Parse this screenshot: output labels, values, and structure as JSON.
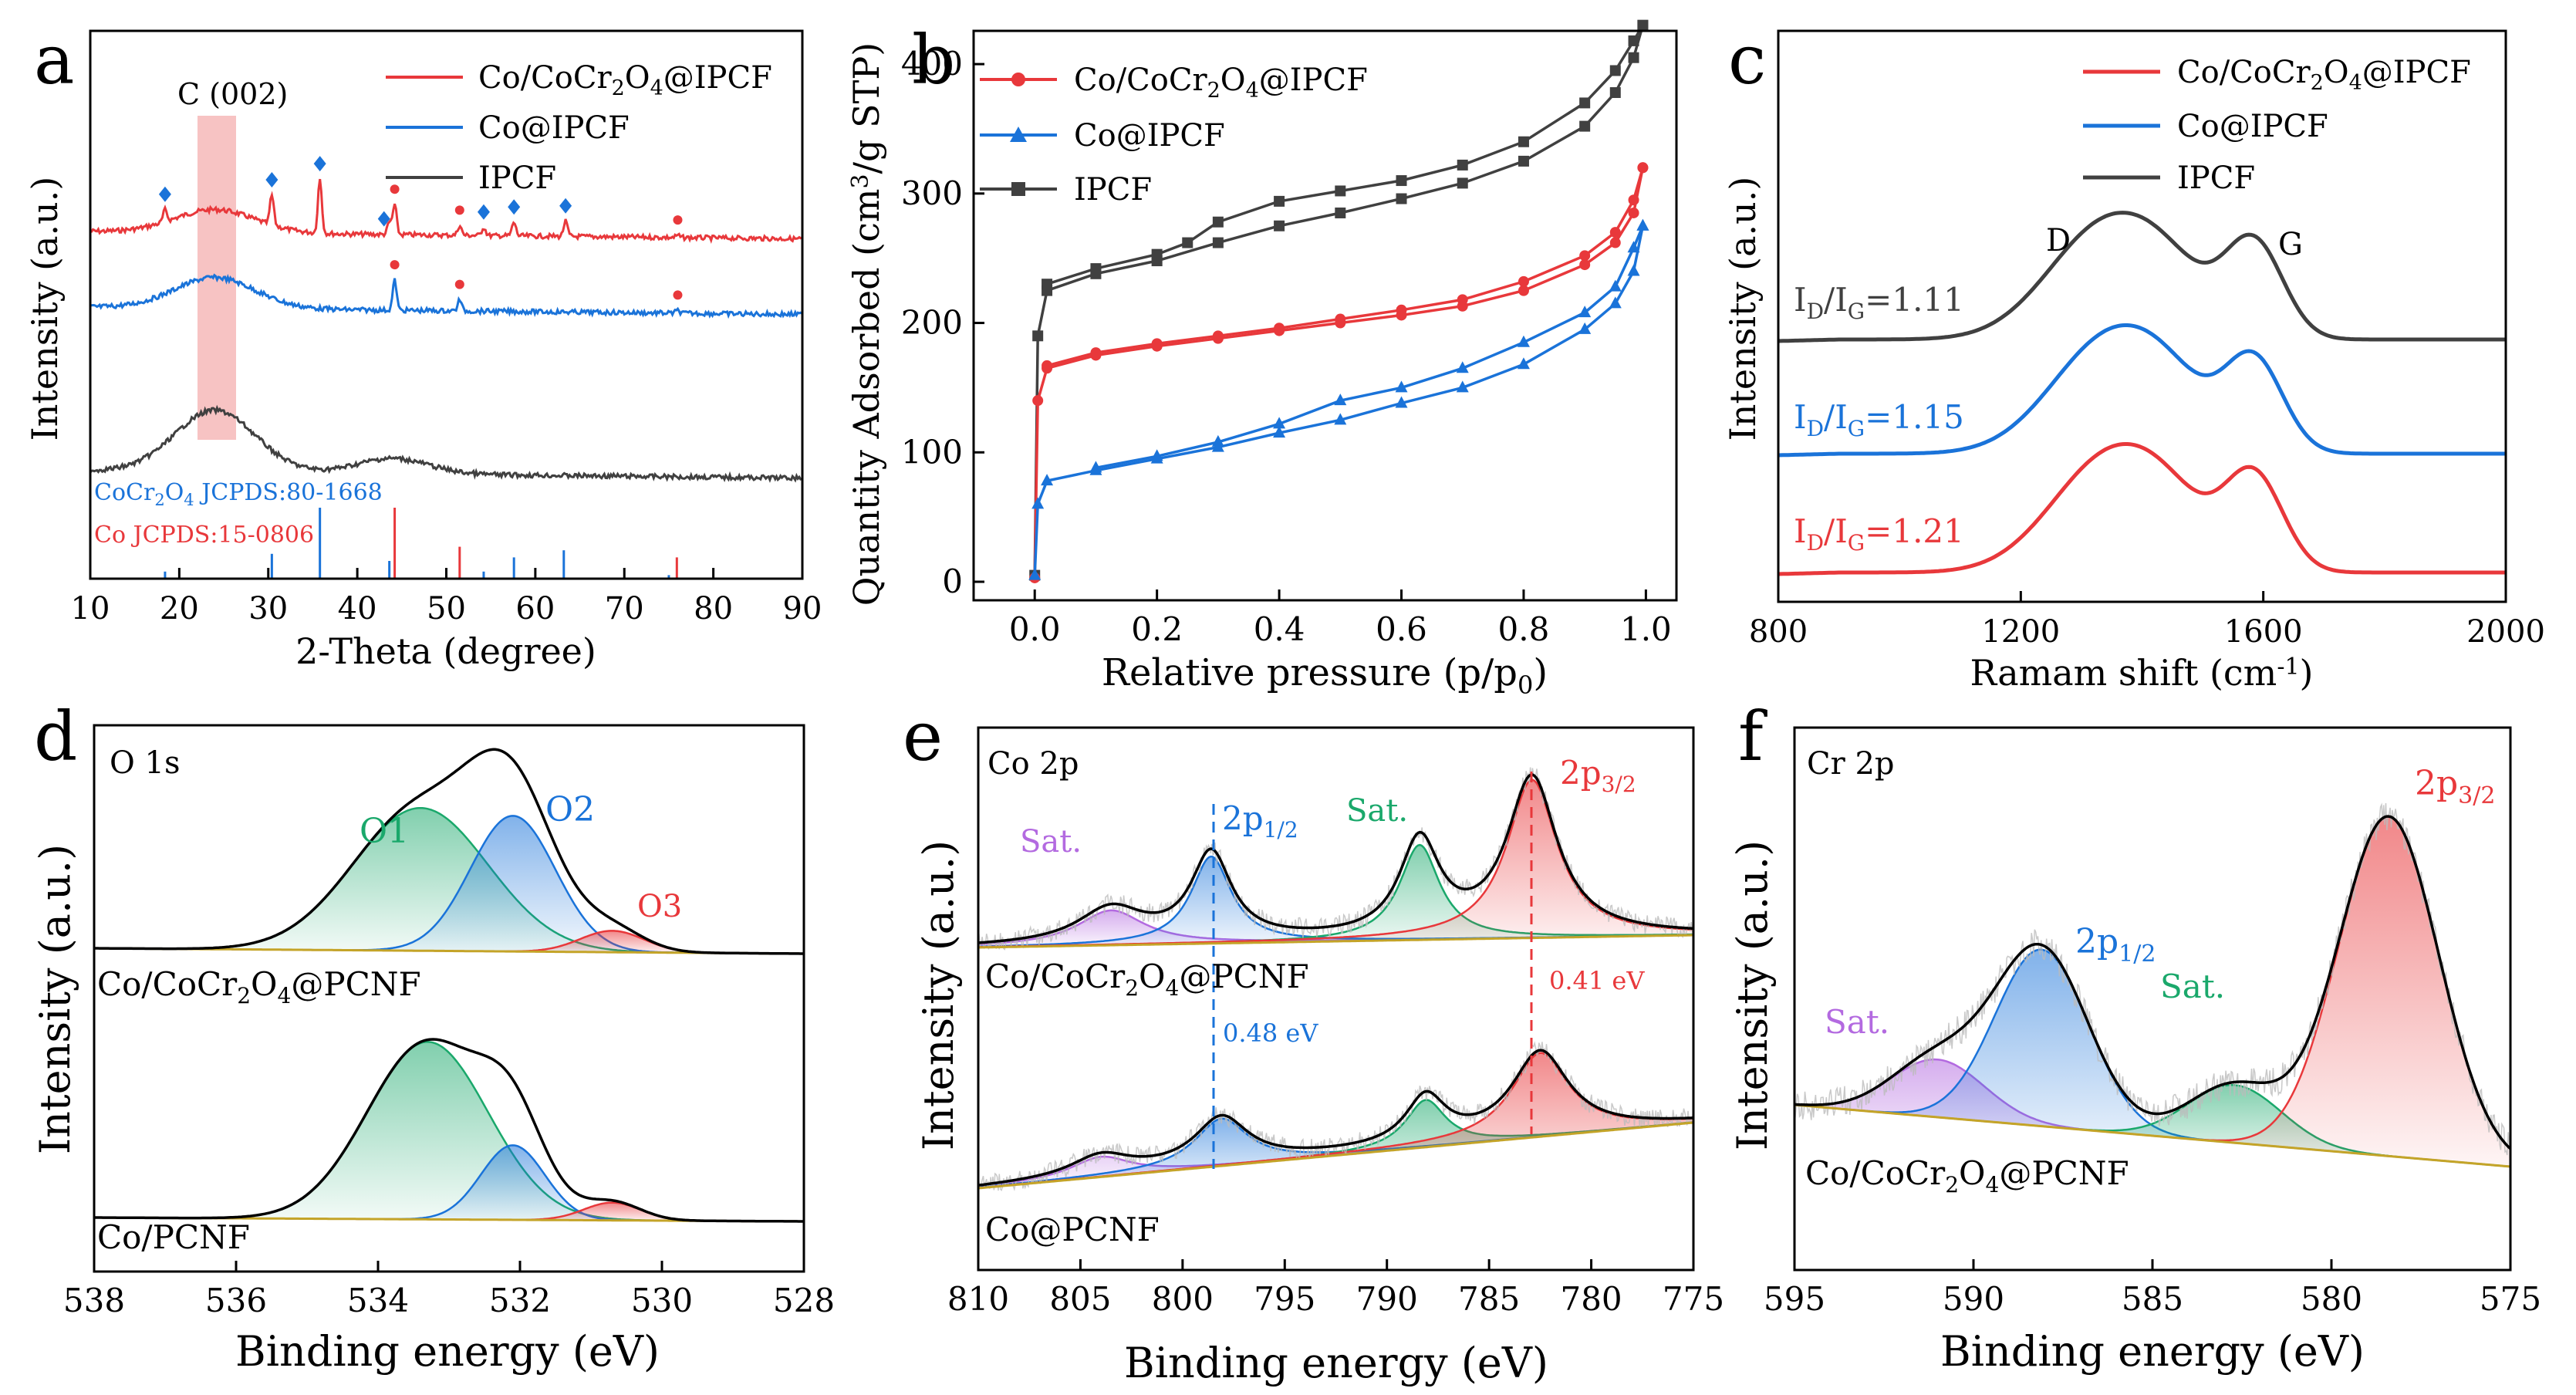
{
  "colors": {
    "red": "#e8383b",
    "blue": "#1a73d9",
    "dark": "#404040",
    "green": "#1aa86b",
    "purple": "#b36ae0",
    "tan": "#c4a428",
    "band": "#f6b8b8"
  },
  "chart_data": [
    {
      "panel": "a",
      "type": "line",
      "xlabel": "2-Theta (degree)",
      "ylabel": "Intensity (a.u.)",
      "xlim": [
        10,
        90
      ],
      "xticks": [
        10,
        20,
        30,
        40,
        50,
        60,
        70,
        80,
        90
      ],
      "band_label": "C (002)",
      "band": [
        22,
        26
      ],
      "legend": [
        "Co/CoCr2O4@IPCF",
        "Co@IPCF",
        "IPCF"
      ],
      "series": [
        {
          "name": "Co/CoCr2O4@IPCF",
          "color": "red",
          "hump": 24,
          "peaks": [
            [
              18.4,
              0.22
            ],
            [
              30.4,
              0.55
            ],
            [
              35.8,
              1.0
            ],
            [
              43.6,
              0.22
            ],
            [
              44.2,
              0.55
            ],
            [
              51.5,
              0.18
            ],
            [
              54.2,
              0.15
            ],
            [
              57.6,
              0.25
            ],
            [
              63.4,
              0.28
            ],
            [
              76,
              0.04
            ]
          ]
        },
        {
          "name": "Co@IPCF",
          "color": "blue",
          "hump": 24,
          "peaks": [
            [
              44.2,
              0.65
            ],
            [
              51.5,
              0.24
            ],
            [
              76,
              0.06
            ]
          ]
        },
        {
          "name": "IPCF",
          "color": "dark",
          "hump": 24,
          "peaks": []
        }
      ],
      "markers": [
        {
          "series": "Co/CoCr2O4@IPCF",
          "diamonds": [
            18.4,
            30.4,
            35.8,
            43.0,
            54.2,
            57.6,
            63.4
          ],
          "dots": [
            44.2,
            51.5,
            76
          ]
        },
        {
          "series": "Co@IPCF",
          "diamonds": [],
          "dots": [
            44.2,
            51.5,
            76
          ]
        }
      ],
      "reference": [
        {
          "label": "CoCr2O4 JCPDS:80-1668",
          "color": "blue",
          "lines": [
            [
              18.4,
              0.1
            ],
            [
              30.4,
              0.35
            ],
            [
              35.8,
              1.0
            ],
            [
              43.6,
              0.25
            ],
            [
              54.2,
              0.1
            ],
            [
              57.6,
              0.3
            ],
            [
              63.2,
              0.4
            ],
            [
              75,
              0.05
            ]
          ]
        },
        {
          "label": "Co JCPDS:15-0806",
          "color": "red",
          "lines": [
            [
              44.2,
              1.0
            ],
            [
              51.5,
              0.45
            ],
            [
              75.9,
              0.3
            ]
          ]
        }
      ]
    },
    {
      "panel": "b",
      "type": "line",
      "xlabel": "Relative pressure (p/p0)",
      "ylabel": "Quantity Adsorbed (cm3/g STP)",
      "xlim": [
        -0.1,
        1.05
      ],
      "ylim": [
        0,
        440
      ],
      "xticks": [
        "0.0",
        "0.2",
        "0.4",
        "0.6",
        "0.8",
        "1.0"
      ],
      "yticks": [
        0,
        100,
        200,
        300,
        400
      ],
      "legend": [
        "Co/CoCr2O4@IPCF",
        "Co@IPCF",
        "IPCF"
      ],
      "series": [
        {
          "name": "IPCF",
          "color": "dark",
          "marker": "square",
          "adsorption": [
            [
              0,
              5
            ],
            [
              0.005,
              190
            ],
            [
              0.02,
              225
            ],
            [
              0.1,
              238
            ],
            [
              0.2,
              248
            ],
            [
              0.3,
              262
            ],
            [
              0.4,
              275
            ],
            [
              0.5,
              285
            ],
            [
              0.6,
              296
            ],
            [
              0.7,
              308
            ],
            [
              0.8,
              325
            ],
            [
              0.9,
              352
            ],
            [
              0.95,
              378
            ],
            [
              0.98,
              405
            ],
            [
              0.995,
              430
            ]
          ],
          "desorption": [
            [
              0.995,
              430
            ],
            [
              0.98,
              418
            ],
            [
              0.95,
              395
            ],
            [
              0.9,
              370
            ],
            [
              0.8,
              340
            ],
            [
              0.7,
              322
            ],
            [
              0.6,
              310
            ],
            [
              0.5,
              302
            ],
            [
              0.4,
              294
            ],
            [
              0.3,
              278
            ],
            [
              0.25,
              262
            ],
            [
              0.2,
              253
            ],
            [
              0.1,
              242
            ],
            [
              0.02,
              230
            ]
          ]
        },
        {
          "name": "Co/CoCr2O4@IPCF",
          "color": "red",
          "marker": "dot",
          "adsorption": [
            [
              0,
              3
            ],
            [
              0.005,
              140
            ],
            [
              0.02,
              165
            ],
            [
              0.1,
              175
            ],
            [
              0.2,
              182
            ],
            [
              0.3,
              188
            ],
            [
              0.4,
              194
            ],
            [
              0.5,
              200
            ],
            [
              0.6,
              206
            ],
            [
              0.7,
              213
            ],
            [
              0.8,
              225
            ],
            [
              0.9,
              245
            ],
            [
              0.95,
              262
            ],
            [
              0.98,
              285
            ],
            [
              0.995,
              320
            ]
          ],
          "desorption": [
            [
              0.995,
              320
            ],
            [
              0.98,
              295
            ],
            [
              0.95,
              270
            ],
            [
              0.9,
              252
            ],
            [
              0.8,
              232
            ],
            [
              0.7,
              218
            ],
            [
              0.6,
              210
            ],
            [
              0.5,
              203
            ],
            [
              0.4,
              196
            ],
            [
              0.3,
              190
            ],
            [
              0.2,
              184
            ],
            [
              0.1,
              177
            ],
            [
              0.02,
              167
            ]
          ]
        },
        {
          "name": "Co@IPCF",
          "color": "blue",
          "marker": "triangle",
          "adsorption": [
            [
              0,
              5
            ],
            [
              0.005,
              60
            ],
            [
              0.02,
              78
            ],
            [
              0.1,
              86
            ],
            [
              0.2,
              95
            ],
            [
              0.3,
              104
            ],
            [
              0.4,
              115
            ],
            [
              0.5,
              125
            ],
            [
              0.6,
              138
            ],
            [
              0.7,
              150
            ],
            [
              0.8,
              168
            ],
            [
              0.9,
              195
            ],
            [
              0.95,
              215
            ],
            [
              0.98,
              240
            ],
            [
              0.995,
              275
            ]
          ],
          "desorption": [
            [
              0.995,
              275
            ],
            [
              0.98,
              258
            ],
            [
              0.95,
              228
            ],
            [
              0.9,
              208
            ],
            [
              0.8,
              185
            ],
            [
              0.7,
              165
            ],
            [
              0.6,
              150
            ],
            [
              0.5,
              140
            ],
            [
              0.4,
              122
            ],
            [
              0.3,
              108
            ],
            [
              0.2,
              97
            ],
            [
              0.1,
              88
            ]
          ]
        }
      ]
    },
    {
      "panel": "c",
      "type": "line",
      "xlabel": "Ramam shift (cm-1)",
      "ylabel": "Intensity (a.u.)",
      "xlim": [
        800,
        2000
      ],
      "xticks": [
        800,
        1200,
        1600,
        2000
      ],
      "d_label": "D",
      "g_label": "G",
      "legend": [
        "Co/CoCr2O4@IPCF",
        "Co@IPCF",
        "IPCF"
      ],
      "series": [
        {
          "name": "IPCF",
          "color": "dark",
          "ratio_label": "ID/IG=1.11",
          "D_center": 1340,
          "G_center": 1585,
          "D_height": 1.0,
          "G_height": 0.93
        },
        {
          "name": "Co@IPCF",
          "color": "blue",
          "ratio_label": "ID/IG=1.15",
          "D_center": 1345,
          "G_center": 1585,
          "D_height": 1.0,
          "G_height": 0.9
        },
        {
          "name": "Co/CoCr2O4@IPCF",
          "color": "red",
          "ratio_label": "ID/IG=1.21",
          "D_center": 1345,
          "G_center": 1585,
          "D_height": 1.0,
          "G_height": 0.93
        }
      ]
    },
    {
      "panel": "d",
      "type": "line",
      "xlabel": "Binding energy (eV)",
      "ylabel": "Intensity (a.u.)",
      "xlim": [
        538,
        528
      ],
      "xticks": [
        538,
        536,
        534,
        532,
        530,
        528
      ],
      "core_level": "O 1s",
      "spectra": [
        {
          "sample": "Co/CoCr2O4@PCNF",
          "components": [
            {
              "label": "O1",
              "color": "green",
              "center": 533.4,
              "height": 1.0,
              "width": 0.95
            },
            {
              "label": "O2",
              "color": "blue",
              "center": 532.1,
              "height": 0.95,
              "width": 0.6
            },
            {
              "label": "O3",
              "color": "red",
              "center": 530.7,
              "height": 0.15,
              "width": 0.45
            }
          ]
        },
        {
          "sample": "Co/PCNF",
          "components": [
            {
              "label": "O1",
              "color": "green",
              "center": 533.3,
              "height": 1.0,
              "width": 0.85
            },
            {
              "label": "O2",
              "color": "blue",
              "center": 532.1,
              "height": 0.42,
              "width": 0.45
            },
            {
              "label": "O3",
              "color": "red",
              "center": 530.7,
              "height": 0.1,
              "width": 0.4
            }
          ]
        }
      ]
    },
    {
      "panel": "e",
      "type": "line",
      "xlabel": "Binding energy (eV)",
      "ylabel": "Intensity (a.u.)",
      "xlim": [
        810,
        775
      ],
      "xticks": [
        810,
        805,
        800,
        795,
        790,
        785,
        780,
        775
      ],
      "core_level": "Co 2p",
      "label_sat": "Sat.",
      "label_p12": "2p",
      "sub_p12": "1/2",
      "label_p32": "2p",
      "sub_p32": "3/2",
      "shift_p12": "0.48 eV",
      "shift_p32": "0.41 eV",
      "spectra": [
        {
          "sample": "Co/CoCr2O4@PCNF",
          "components": [
            {
              "label": "Sat.",
              "color": "purple",
              "center": 803.5,
              "height": 0.22,
              "width": 2.0
            },
            {
              "label": "2p1/2",
              "color": "blue",
              "center": 798.6,
              "height": 0.55,
              "width": 1.2
            },
            {
              "label": "Sat.",
              "color": "green",
              "center": 788.4,
              "height": 0.6,
              "width": 1.2
            },
            {
              "label": "2p3/2",
              "color": "red",
              "center": 782.9,
              "height": 1.0,
              "width": 1.5
            }
          ]
        },
        {
          "sample": "Co@PCNF",
          "components": [
            {
              "label": "Sat.",
              "color": "purple",
              "center": 804.0,
              "height": 0.15,
              "width": 1.8
            },
            {
              "label": "2p1/2",
              "color": "blue",
              "center": 798.1,
              "height": 0.35,
              "width": 1.6
            },
            {
              "label": "Sat.",
              "color": "green",
              "center": 788.1,
              "height": 0.35,
              "width": 1.2
            },
            {
              "label": "2p3/2",
              "color": "red",
              "center": 782.5,
              "height": 0.62,
              "width": 1.7
            }
          ]
        }
      ]
    },
    {
      "panel": "f",
      "type": "line",
      "xlabel": "Binding energy (eV)",
      "ylabel": "Intensity (a.u.)",
      "xlim": [
        595,
        575
      ],
      "xticks": [
        595,
        590,
        585,
        580,
        575
      ],
      "core_level": "Cr 2p",
      "label_sat": "Sat.",
      "label_p12": "2p",
      "sub_p12": "1/2",
      "label_p32": "2p",
      "sub_p32": "3/2",
      "spectra": [
        {
          "sample": "Co/CoCr2O4@PCNF",
          "components": [
            {
              "label": "Sat.",
              "color": "purple",
              "center": 591.0,
              "height": 0.17,
              "width": 1.3
            },
            {
              "label": "2p1/2",
              "color": "blue",
              "center": 588.1,
              "height": 0.52,
              "width": 1.3
            },
            {
              "label": "Sat.",
              "color": "green",
              "center": 582.7,
              "height": 0.17,
              "width": 1.3
            },
            {
              "label": "2p3/2",
              "color": "red",
              "center": 578.4,
              "height": 1.0,
              "width": 1.4
            }
          ]
        }
      ]
    }
  ],
  "text": {
    "a": {
      "letter": "a",
      "xlabel": "2-Theta (degree)",
      "ylabel": "Intensity (a.u.)",
      "band": "C (002)",
      "legend": [
        {
          "pre": "Co/CoCr",
          "s1": "2",
          "mid": "O",
          "s2": "4",
          "post": "@IPCF"
        },
        {
          "pre": "Co@IPCF"
        },
        {
          "pre": "IPCF"
        }
      ],
      "ref1": {
        "pre": "CoCr",
        "s1": "2",
        "mid": "O",
        "s2": "4",
        "post": " JCPDS:80-1668"
      },
      "ref2": "Co JCPDS:15-0806"
    },
    "b": {
      "letter": "b",
      "xlabel_pre": "Relative pressure (p/p",
      "xlabel_sub": "0",
      "xlabel_post": ")",
      "ylabel_pre": "Quantity Adsorbed (cm",
      "ylabel_sup": "3",
      "ylabel_post": "/g STP)",
      "legend": [
        {
          "pre": "Co/CoCr",
          "s1": "2",
          "mid": "O",
          "s2": "4",
          "post": "@IPCF"
        },
        {
          "pre": "Co@IPCF"
        },
        {
          "pre": "IPCF"
        }
      ]
    },
    "c": {
      "letter": "c",
      "xlabel_pre": "Ramam shift (cm",
      "xlabel_sup": "-1",
      "xlabel_post": ")",
      "ylabel": "Intensity (a.u.)",
      "legend": [
        {
          "pre": "Co/CoCr",
          "s1": "2",
          "mid": "O",
          "s2": "4",
          "post": "@IPCF"
        },
        {
          "pre": "Co@IPCF"
        },
        {
          "pre": "IPCF"
        }
      ],
      "ratios": [
        {
          "i": "I",
          "d": "D",
          "slash": "/I",
          "g": "G",
          "val": "=1.11"
        },
        {
          "i": "I",
          "d": "D",
          "slash": "/I",
          "g": "G",
          "val": "=1.15"
        },
        {
          "i": "I",
          "d": "D",
          "slash": "/I",
          "g": "G",
          "val": "=1.21"
        }
      ],
      "D": "D",
      "G": "G"
    },
    "d": {
      "letter": "d",
      "xlabel": "Binding energy (eV)",
      "ylabel": "Intensity (a.u.)",
      "core": "O 1s",
      "O1": "O1",
      "O2": "O2",
      "O3": "O3",
      "sample1": {
        "pre": "Co/CoCr",
        "s1": "2",
        "mid": "O",
        "s2": "4",
        "post": "@PCNF"
      },
      "sample2": "Co/PCNF"
    },
    "e": {
      "letter": "e",
      "xlabel": "Binding energy (eV)",
      "ylabel": "Intensity (a.u.)",
      "core": "Co 2p",
      "sat": "Sat.",
      "p": "2p",
      "p12": "1/2",
      "p32": "3/2",
      "shift1": "0.48 eV",
      "shift2": "0.41 eV",
      "sample1": {
        "pre": "Co/CoCr",
        "s1": "2",
        "mid": "O",
        "s2": "4",
        "post": "@PCNF"
      },
      "sample2": "Co@PCNF"
    },
    "f": {
      "letter": "f",
      "xlabel": "Binding energy (eV)",
      "ylabel": "Intensity (a.u.)",
      "core": "Cr 2p",
      "sat": "Sat.",
      "p": "2p",
      "p12": "1/2",
      "p32": "3/2",
      "sample1": {
        "pre": "Co/CoCr",
        "s1": "2",
        "mid": "O",
        "s2": "4",
        "post": "@PCNF"
      }
    }
  }
}
